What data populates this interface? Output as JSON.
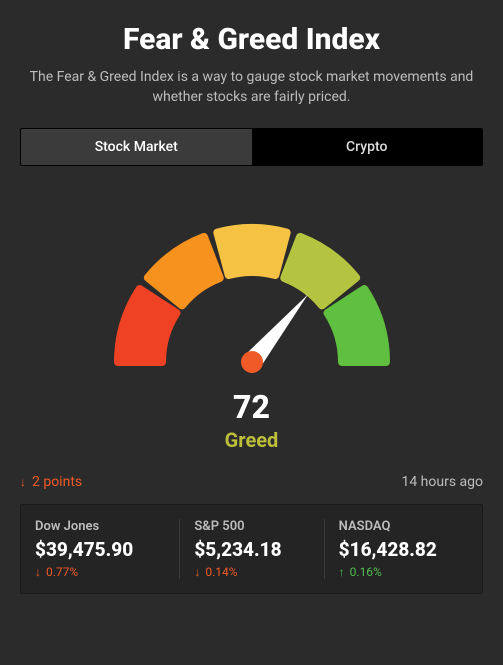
{
  "colors": {
    "background": "#2b2b2b",
    "card_background": "#242424",
    "text_muted": "#bdbdbd",
    "up": "#4fbf4f",
    "down": "#f05a28",
    "label_greed": "#bdbf3a"
  },
  "header": {
    "title": "Fear & Greed Index",
    "subtitle": "The Fear & Greed Index is a way to gauge stock market movements and whether stocks are fairly priced."
  },
  "tabs": {
    "items": [
      "Stock Market",
      "Crypto"
    ],
    "active_index": 0
  },
  "gauge": {
    "type": "gauge",
    "value": 72,
    "min": 0,
    "max": 100,
    "label": "Greed",
    "label_color": "#bdbf3a",
    "value_fontsize": 32,
    "label_fontsize": 20,
    "segments": [
      {
        "range": [
          0,
          20
        ],
        "color": "#ef4123"
      },
      {
        "range": [
          20,
          40
        ],
        "color": "#f7921e"
      },
      {
        "range": [
          40,
          60
        ],
        "color": "#f6c244"
      },
      {
        "range": [
          60,
          80
        ],
        "color": "#b5c440"
      },
      {
        "range": [
          80,
          100
        ],
        "color": "#5fbf3f"
      }
    ],
    "needle_color": "#ffffff",
    "needle_hub_color": "#f05a28",
    "arc_inner_radius": 90,
    "arc_outer_radius": 134,
    "arc_gap_deg": 6,
    "background_color": "#2b2b2b"
  },
  "delta": {
    "direction": "down",
    "text": "2 points",
    "color": "#f05a28"
  },
  "updated_ago": "14 hours ago",
  "tickers": [
    {
      "name": "Dow Jones",
      "price": "$39,475.90",
      "change": "0.77%",
      "dir": "down",
      "color": "#f05a28"
    },
    {
      "name": "S&P 500",
      "price": "$5,234.18",
      "change": "0.14%",
      "dir": "down",
      "color": "#f05a28"
    },
    {
      "name": "NASDAQ",
      "price": "$16,428.82",
      "change": "0.16%",
      "dir": "up",
      "color": "#4fbf4f"
    }
  ]
}
